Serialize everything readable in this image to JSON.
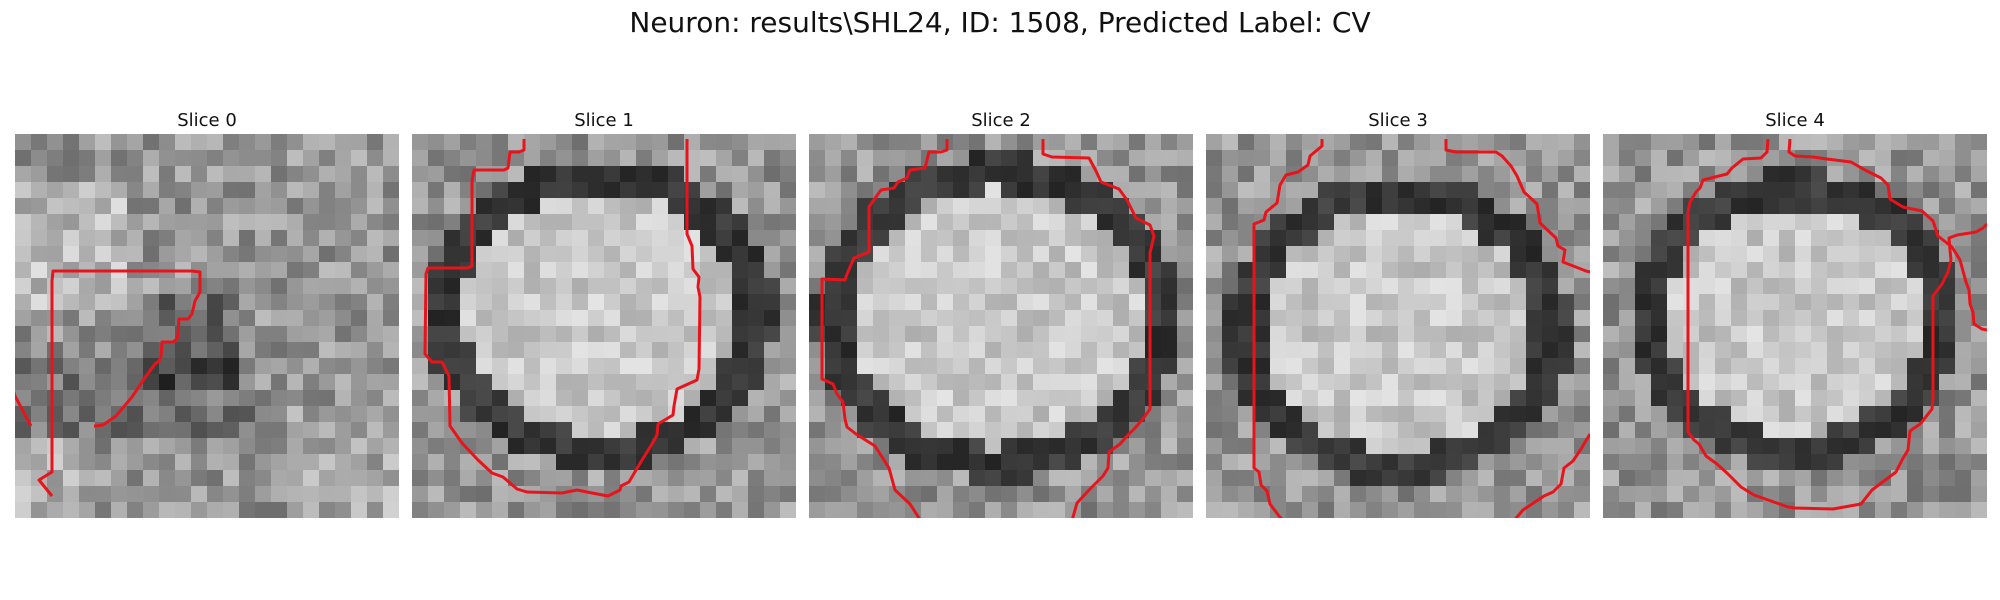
{
  "figure": {
    "title": "Neuron: results\\SHL24, ID: 1508, Predicted Label: CV"
  },
  "panels": [
    {
      "title": "Slice 0",
      "pattern": "noisy"
    },
    {
      "title": "Slice 1",
      "pattern": "cell"
    },
    {
      "title": "Slice 2",
      "pattern": "cell"
    },
    {
      "title": "Slice 3",
      "pattern": "cell"
    },
    {
      "title": "Slice 4",
      "pattern": "cell"
    }
  ],
  "colors": {
    "contour": "#e8141c",
    "background": "#ffffff"
  }
}
